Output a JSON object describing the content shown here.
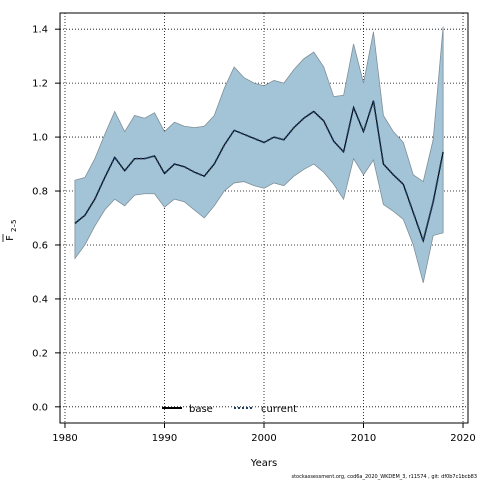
{
  "chart_data": {
    "type": "line",
    "xlabel": "Years",
    "ylabel_main": "F",
    "ylabel_sub": "2–5",
    "xlim": [
      1979.5,
      2020.5
    ],
    "ylim": [
      -0.06,
      1.46
    ],
    "xticks": [
      1980,
      1990,
      2000,
      2010,
      2020
    ],
    "yticks": [
      0.0,
      0.2,
      0.4,
      0.6,
      0.8,
      1.0,
      1.2,
      1.4
    ],
    "grid": true,
    "legend_position": "bottom-center",
    "x": [
      1981,
      1982,
      1983,
      1984,
      1985,
      1986,
      1987,
      1988,
      1989,
      1990,
      1991,
      1992,
      1993,
      1994,
      1995,
      1996,
      1997,
      1998,
      1999,
      2000,
      2001,
      2002,
      2003,
      2004,
      2005,
      2006,
      2007,
      2008,
      2009,
      2010,
      2011,
      2012,
      2013,
      2014,
      2015,
      2016,
      2017,
      2018
    ],
    "band": {
      "name": "current",
      "color": "#a3c4d6",
      "edge_color": "#7f8f99",
      "upper": [
        0.84,
        0.85,
        0.92,
        1.01,
        1.095,
        1.02,
        1.08,
        1.07,
        1.09,
        1.02,
        1.055,
        1.04,
        1.035,
        1.04,
        1.08,
        1.18,
        1.26,
        1.22,
        1.2,
        1.19,
        1.21,
        1.2,
        1.25,
        1.29,
        1.315,
        1.26,
        1.15,
        1.155,
        1.345,
        1.2,
        1.39,
        1.08,
        1.02,
        0.98,
        0.86,
        0.835,
        0.99,
        1.41
      ],
      "lower": [
        0.55,
        0.6,
        0.67,
        0.73,
        0.77,
        0.745,
        0.785,
        0.79,
        0.79,
        0.74,
        0.77,
        0.76,
        0.73,
        0.7,
        0.745,
        0.8,
        0.83,
        0.835,
        0.82,
        0.81,
        0.83,
        0.82,
        0.855,
        0.88,
        0.9,
        0.87,
        0.825,
        0.77,
        0.92,
        0.86,
        0.915,
        0.75,
        0.725,
        0.695,
        0.6,
        0.46,
        0.635,
        0.645
      ]
    },
    "series": [
      {
        "name": "base",
        "style": "solid",
        "color": "#000000",
        "values": [
          0.68,
          0.71,
          0.77,
          0.85,
          0.925,
          0.875,
          0.92,
          0.92,
          0.93,
          0.865,
          0.9,
          0.89,
          0.87,
          0.855,
          0.9,
          0.97,
          1.025,
          1.01,
          0.995,
          0.98,
          1.0,
          0.99,
          1.035,
          1.07,
          1.095,
          1.06,
          0.985,
          0.945,
          1.11,
          1.02,
          1.135,
          0.9,
          0.86,
          0.825,
          0.72,
          0.615,
          0.76,
          0.945
        ]
      },
      {
        "name": "current",
        "style": "dotted",
        "color": "#1f3f66",
        "values": [
          0.68,
          0.71,
          0.77,
          0.85,
          0.925,
          0.875,
          0.92,
          0.92,
          0.93,
          0.865,
          0.9,
          0.89,
          0.87,
          0.855,
          0.9,
          0.97,
          1.025,
          1.01,
          0.995,
          0.98,
          1.0,
          0.99,
          1.035,
          1.07,
          1.095,
          1.06,
          0.985,
          0.945,
          1.11,
          1.02,
          1.135,
          0.9,
          0.86,
          0.825,
          0.72,
          0.615,
          0.76,
          0.945
        ]
      }
    ]
  },
  "footer": "stockassessment.org,  cod6a_2020_WKDEM_3, r11574 ,  git: df0b7c1bcb83"
}
